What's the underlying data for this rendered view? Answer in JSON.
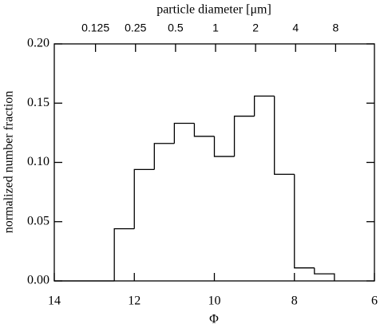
{
  "chart_data": {
    "type": "histogram",
    "xlabel": "Φ",
    "ylabel": "normalized number fraction",
    "x2label": "particle diameter [μm]",
    "bins": [
      14,
      13.5,
      13,
      12.5,
      12,
      11.5,
      11,
      10.5,
      10,
      9.5,
      9,
      8.5,
      8,
      7.5,
      7
    ],
    "values": [
      0,
      0,
      0,
      0.044,
      0.094,
      0.116,
      0.133,
      0.122,
      0.105,
      0.139,
      0.156,
      0.09,
      0.011,
      0.006
    ],
    "color": "#000000",
    "xlim": [
      14,
      6
    ],
    "xticks": [
      14,
      12,
      10,
      8,
      6
    ],
    "x2ticks": [
      {
        "value": 12.97,
        "label": "0.125"
      },
      {
        "value": 11.97,
        "label": "0.25"
      },
      {
        "value": 10.97,
        "label": "0.5"
      },
      {
        "value": 9.97,
        "label": "1"
      },
      {
        "value": 8.97,
        "label": "2"
      },
      {
        "value": 7.97,
        "label": "4"
      },
      {
        "value": 6.97,
        "label": "8"
      }
    ],
    "ylim": [
      0,
      0.2
    ],
    "yticks": [
      {
        "value": 0,
        "label": "0.00"
      },
      {
        "value": 0.05,
        "label": "0.05"
      },
      {
        "value": 0.1,
        "label": "0.10"
      },
      {
        "value": 0.15,
        "label": "0.15"
      },
      {
        "value": 0.2,
        "label": "0.20"
      }
    ],
    "grid": false
  }
}
